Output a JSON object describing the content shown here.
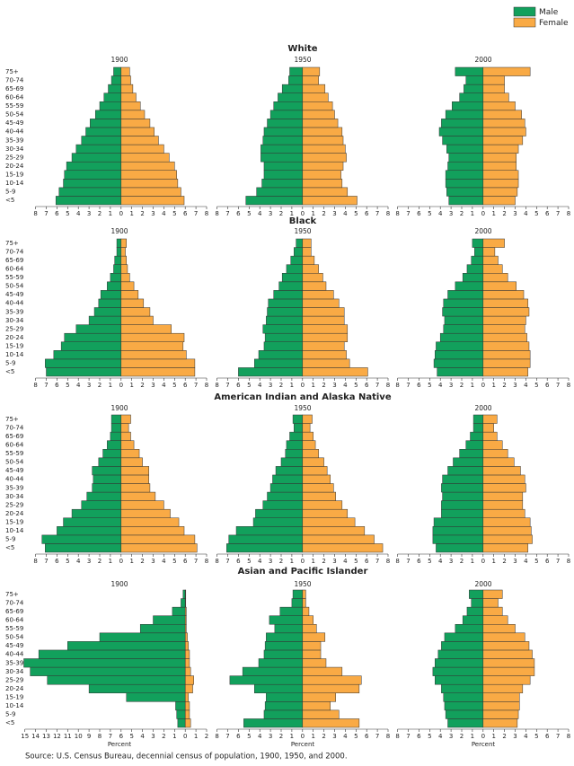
{
  "chart_data": {
    "type": "pyramid",
    "series": [
      {
        "name": "Male",
        "color": "#12a05c"
      },
      {
        "name": "Female",
        "color": "#f9aa45"
      }
    ],
    "categories": [
      "<5",
      "5-9",
      "10-14",
      "15-19",
      "20-24",
      "25-29",
      "30-34",
      "35-39",
      "40-44",
      "45-49",
      "50-54",
      "55-59",
      "60-64",
      "65-69",
      "70-74",
      "75+"
    ],
    "xlim": [
      -8,
      8
    ],
    "xticks": [
      {
        "value": -8,
        "label": "8"
      },
      {
        "value": -7,
        "label": "7"
      },
      {
        "value": -6,
        "label": "6"
      },
      {
        "value": -5,
        "label": "5"
      },
      {
        "value": -4,
        "label": "4"
      },
      {
        "value": -3,
        "label": "3"
      },
      {
        "value": -2,
        "label": "2"
      },
      {
        "value": -1,
        "label": "1"
      },
      0,
      1,
      2,
      3,
      4,
      5,
      6,
      7,
      8
    ],
    "x_label": "Percent",
    "source": "Source:  U.S. Census Bureau, decennial census of population, 1900, 1950, and 2000.",
    "groups": [
      {
        "title": "White",
        "panels": [
          {
            "title": "1900",
            "male": [
              6.1,
              5.8,
              5.4,
              5.3,
              5.1,
              4.6,
              4.2,
              3.7,
              3.3,
              2.9,
              2.4,
              2.0,
              1.6,
              1.2,
              0.9,
              0.7
            ],
            "female": [
              5.9,
              5.6,
              5.3,
              5.2,
              5.0,
              4.5,
              4.0,
              3.5,
              3.1,
              2.7,
              2.2,
              1.8,
              1.4,
              1.1,
              0.9,
              0.8
            ]
          },
          {
            "title": "1950",
            "male": [
              5.3,
              4.3,
              3.8,
              3.6,
              3.6,
              3.9,
              3.9,
              3.7,
              3.6,
              3.3,
              3.0,
              2.7,
              2.3,
              1.9,
              1.3,
              1.2
            ],
            "female": [
              5.1,
              4.2,
              3.7,
              3.6,
              3.8,
              4.1,
              4.0,
              3.8,
              3.7,
              3.3,
              3.0,
              2.8,
              2.4,
              2.1,
              1.5,
              1.6
            ]
          },
          {
            "title": "2000",
            "male": [
              3.2,
              3.4,
              3.5,
              3.5,
              3.3,
              3.2,
              3.4,
              3.8,
              4.1,
              3.9,
              3.5,
              2.9,
              2.2,
              1.8,
              1.6,
              2.6
            ],
            "female": [
              3.0,
              3.2,
              3.3,
              3.3,
              3.1,
              3.1,
              3.3,
              3.7,
              4.0,
              3.9,
              3.6,
              3.0,
              2.4,
              2.0,
              2.0,
              4.4
            ]
          }
        ]
      },
      {
        "title": "Black",
        "panels": [
          {
            "title": "1900",
            "male": [
              7.0,
              7.1,
              6.3,
              5.6,
              5.3,
              4.2,
              3.0,
              2.5,
              2.1,
              1.9,
              1.3,
              1.0,
              0.7,
              0.6,
              0.4,
              0.4
            ],
            "female": [
              6.9,
              6.9,
              6.1,
              5.8,
              5.9,
              4.7,
              3.0,
              2.7,
              2.1,
              1.6,
              1.2,
              0.8,
              0.6,
              0.5,
              0.4,
              0.5
            ]
          },
          {
            "title": "1950",
            "male": [
              6.0,
              4.5,
              4.1,
              3.6,
              3.5,
              3.7,
              3.4,
              3.3,
              3.2,
              2.7,
              2.2,
              1.9,
              1.5,
              1.1,
              0.8,
              0.6
            ],
            "female": [
              6.1,
              4.4,
              4.1,
              3.9,
              4.2,
              4.2,
              3.9,
              3.9,
              3.4,
              2.9,
              2.2,
              1.9,
              1.5,
              1.1,
              0.8,
              0.8
            ]
          },
          {
            "title": "2000",
            "male": [
              4.3,
              4.6,
              4.5,
              4.4,
              4.0,
              3.7,
              3.6,
              3.8,
              3.7,
              3.3,
              2.6,
              1.9,
              1.5,
              1.1,
              0.8,
              1.0
            ],
            "female": [
              4.2,
              4.4,
              4.4,
              4.3,
              4.1,
              3.9,
              4.0,
              4.3,
              4.2,
              3.8,
              3.1,
              2.3,
              1.8,
              1.4,
              1.1,
              2.0
            ]
          }
        ]
      },
      {
        "title": "American Indian and Alaska Native",
        "panels": [
          {
            "title": "1900",
            "male": [
              7.1,
              7.4,
              6.0,
              5.4,
              4.6,
              3.7,
              3.2,
              2.7,
              2.6,
              2.7,
              2.1,
              1.7,
              1.3,
              1.0,
              0.9,
              0.9
            ],
            "female": [
              7.1,
              6.9,
              5.9,
              5.4,
              4.6,
              4.0,
              3.2,
              2.7,
              2.6,
              2.6,
              2.0,
              1.7,
              1.2,
              0.9,
              0.7,
              0.9
            ]
          },
          {
            "title": "1950",
            "male": [
              7.1,
              6.9,
              6.2,
              4.6,
              4.4,
              3.7,
              3.3,
              3.0,
              2.8,
              2.5,
              2.0,
              1.6,
              1.5,
              1.2,
              0.8,
              0.9
            ],
            "female": [
              7.5,
              6.7,
              5.8,
              4.9,
              4.2,
              3.7,
              3.1,
              2.9,
              2.6,
              2.3,
              2.0,
              1.5,
              1.2,
              1.0,
              0.7,
              0.9
            ]
          },
          {
            "title": "2000",
            "male": [
              4.4,
              4.7,
              4.7,
              4.6,
              3.9,
              3.9,
              3.8,
              3.9,
              3.8,
              3.3,
              2.8,
              2.2,
              1.6,
              1.2,
              0.9,
              0.9
            ],
            "female": [
              4.2,
              4.6,
              4.5,
              4.4,
              3.9,
              3.7,
              3.7,
              4.0,
              3.9,
              3.5,
              2.9,
              2.3,
              1.8,
              1.3,
              1.0,
              1.3
            ]
          }
        ]
      },
      {
        "title": "Asian and Pacific Islander",
        "panels": [
          {
            "title": "1900",
            "xlim": [
              -15,
              2
            ],
            "xticks": [
              {
                "value": -15,
                "label": "15"
              },
              {
                "value": -14,
                "label": "14"
              },
              {
                "value": -13,
                "label": "13"
              },
              {
                "value": -12,
                "label": "12"
              },
              {
                "value": -11,
                "label": "11"
              },
              {
                "value": -10,
                "label": "10"
              },
              {
                "value": -9,
                "label": "9"
              },
              {
                "value": -8,
                "label": "8"
              },
              {
                "value": -7,
                "label": "7"
              },
              {
                "value": -6,
                "label": "6"
              },
              {
                "value": -5,
                "label": "5"
              },
              {
                "value": -4,
                "label": "4"
              },
              {
                "value": -3,
                "label": "3"
              },
              {
                "value": -2,
                "label": "2"
              },
              {
                "value": -1,
                "label": "1"
              },
              0,
              1,
              2
            ],
            "male": [
              0.7,
              0.8,
              0.9,
              5.5,
              9.0,
              12.9,
              14.5,
              15.1,
              13.7,
              11.0,
              8.0,
              4.2,
              3.0,
              1.2,
              0.4,
              0.2
            ],
            "female": [
              0.5,
              0.4,
              0.4,
              0.3,
              0.7,
              0.8,
              0.5,
              0.4,
              0.4,
              0.3,
              0.2,
              0.1,
              0.1,
              0.1,
              0.05,
              0.05
            ]
          },
          {
            "title": "1950",
            "male": [
              5.5,
              3.6,
              3.5,
              3.4,
              4.5,
              6.8,
              5.6,
              4.1,
              3.6,
              3.5,
              3.4,
              2.6,
              3.1,
              2.1,
              1.0,
              0.9
            ],
            "female": [
              5.3,
              3.4,
              2.6,
              3.1,
              5.3,
              5.5,
              3.7,
              2.2,
              1.7,
              1.7,
              2.1,
              1.3,
              1.0,
              0.6,
              0.3,
              0.3
            ]
          },
          {
            "title": "2000",
            "male": [
              3.3,
              3.5,
              3.6,
              3.7,
              3.9,
              4.5,
              4.7,
              4.5,
              4.2,
              3.9,
              3.6,
              2.6,
              1.9,
              1.5,
              1.1,
              1.3
            ],
            "female": [
              3.2,
              3.3,
              3.4,
              3.4,
              3.7,
              4.4,
              4.8,
              4.8,
              4.6,
              4.3,
              3.9,
              3.0,
              2.3,
              1.8,
              1.4,
              1.8
            ]
          }
        ]
      }
    ]
  }
}
